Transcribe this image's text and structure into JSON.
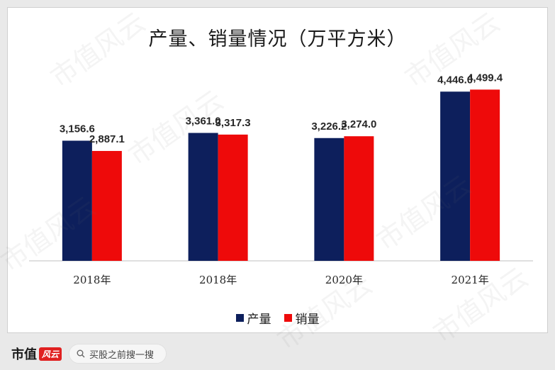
{
  "chart_data": {
    "type": "bar",
    "title": "产量、销量情况（万平方米）",
    "categories": [
      "2018年",
      "2018年",
      "2020年",
      "2021年"
    ],
    "series": [
      {
        "name": "产量",
        "color": "#0d1f5c",
        "values": [
          3156.6,
          3361.0,
          3226.2,
          4446.0
        ],
        "labels": [
          "3,156.6",
          "3,361.0",
          "3,226.2",
          "4,446.0"
        ]
      },
      {
        "name": "销量",
        "color": "#ee0a0a",
        "values": [
          2887.1,
          3317.3,
          3274.0,
          4499.4
        ],
        "labels": [
          "2,887.1",
          "3,317.3",
          "3,274.0",
          "4,499.4"
        ]
      }
    ],
    "ylim": [
      0,
      4600
    ],
    "grid": false,
    "legend": "bottom"
  },
  "legend": {
    "item0": "产量",
    "item1": "销量"
  },
  "watermark": "市值风云",
  "footer": {
    "brand": "市值",
    "brand_logo": "风云",
    "search_text": "买股之前搜一搜"
  }
}
